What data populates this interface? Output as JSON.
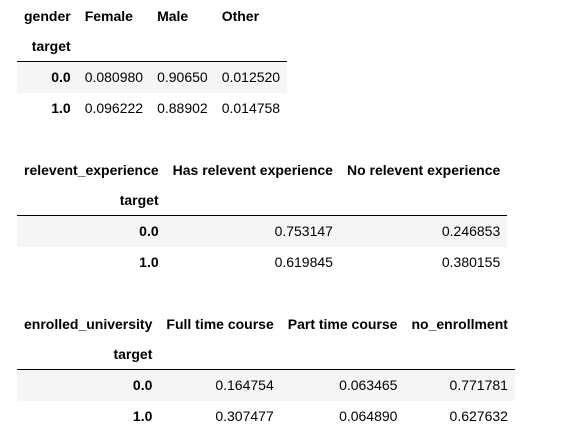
{
  "tables": [
    {
      "columns_name": "gender",
      "index_name": "target",
      "columns": [
        "Female",
        "Male",
        "Other"
      ],
      "rows": [
        {
          "index": "0.0",
          "values": [
            "0.080980",
            "0.90650",
            "0.012520"
          ]
        },
        {
          "index": "1.0",
          "values": [
            "0.096222",
            "0.88902",
            "0.014758"
          ]
        }
      ]
    },
    {
      "columns_name": "relevent_experience",
      "index_name": "target",
      "columns": [
        "Has relevent experience",
        "No relevent experience"
      ],
      "rows": [
        {
          "index": "0.0",
          "values": [
            "0.753147",
            "0.246853"
          ]
        },
        {
          "index": "1.0",
          "values": [
            "0.619845",
            "0.380155"
          ]
        }
      ]
    },
    {
      "columns_name": "enrolled_university",
      "index_name": "target",
      "columns": [
        "Full time course",
        "Part time course",
        "no_enrollment"
      ],
      "rows": [
        {
          "index": "0.0",
          "values": [
            "0.164754",
            "0.063465",
            "0.771781"
          ]
        },
        {
          "index": "1.0",
          "values": [
            "0.307477",
            "0.064890",
            "0.627632"
          ]
        }
      ]
    }
  ]
}
